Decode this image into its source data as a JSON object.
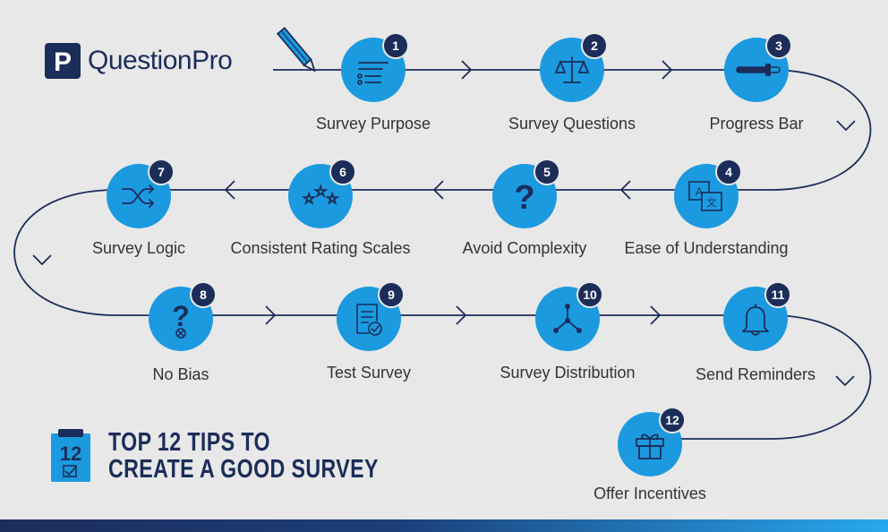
{
  "brand": {
    "name": "QuestionPro",
    "color_primary": "#1c2d5a",
    "color_accent": "#1b9ae0"
  },
  "title": {
    "badge_number": "12",
    "line1": "TOP 12 TIPS TO",
    "line2": "CREATE A GOOD SURVEY"
  },
  "steps": [
    {
      "number": "1",
      "label": "Survey Purpose",
      "icon": "list-icon"
    },
    {
      "number": "2",
      "label": "Survey Questions",
      "icon": "scale-icon"
    },
    {
      "number": "3",
      "label": "Progress Bar",
      "icon": "progress-bar-icon"
    },
    {
      "number": "4",
      "label": "Ease of Understanding",
      "icon": "translate-icon"
    },
    {
      "number": "5",
      "label": "Avoid Complexity",
      "icon": "question-mark-icon"
    },
    {
      "number": "6",
      "label": "Consistent Rating Scales",
      "icon": "stars-icon"
    },
    {
      "number": "7",
      "label": "Survey Logic",
      "icon": "shuffle-icon"
    },
    {
      "number": "8",
      "label": "No Bias",
      "icon": "question-cancel-icon"
    },
    {
      "number": "9",
      "label": "Test Survey",
      "icon": "checklist-icon"
    },
    {
      "number": "10",
      "label": "Survey Distribution",
      "icon": "distribution-icon"
    },
    {
      "number": "11",
      "label": "Send Reminders",
      "icon": "bell-icon"
    },
    {
      "number": "12",
      "label": "Offer Incentives",
      "icon": "gift-icon"
    }
  ]
}
